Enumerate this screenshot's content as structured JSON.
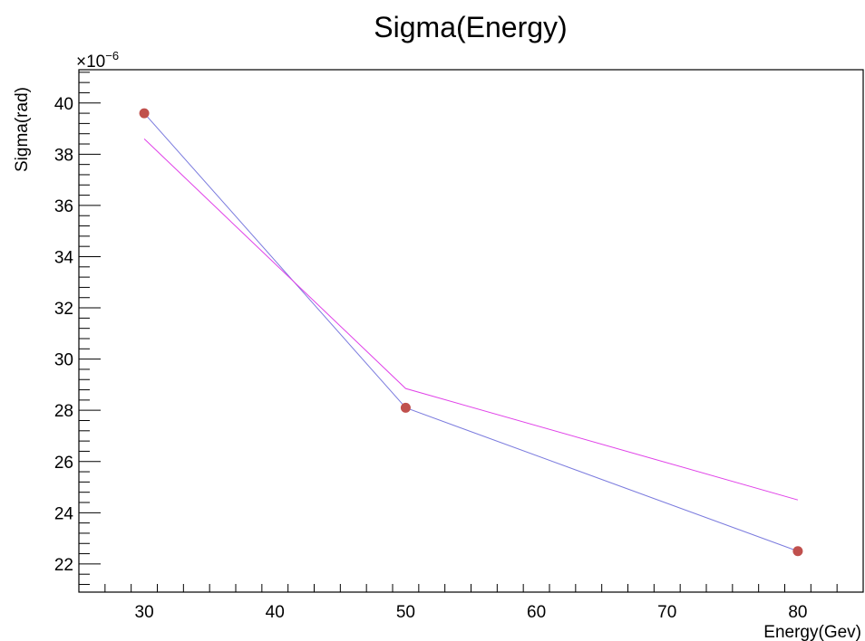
{
  "chart_data": {
    "type": "line",
    "title": "Sigma(Energy)",
    "xlabel": "Energy(Gev)",
    "ylabel": "Sigma(rad)",
    "y_multiplier": {
      "base": "×10",
      "exponent": "−6"
    },
    "xlim": [
      25,
      85
    ],
    "ylim": [
      20.9,
      41.3
    ],
    "x_ticks": [
      30,
      40,
      50,
      60,
      70,
      80
    ],
    "x_tick_labels": [
      "30",
      "40",
      "50",
      "60",
      "70",
      "80"
    ],
    "y_ticks": [
      22,
      24,
      26,
      28,
      30,
      32,
      34,
      36,
      38,
      40
    ],
    "y_tick_labels": [
      "22",
      "24",
      "26",
      "28",
      "30",
      "32",
      "34",
      "36",
      "38",
      "40"
    ],
    "grid": false,
    "series": [
      {
        "kind": "markers+line",
        "color": "#c0504d",
        "line_color": "#7b7bde",
        "x": [
          30,
          50,
          80
        ],
        "y": [
          39.6,
          28.1,
          22.5
        ]
      },
      {
        "kind": "line",
        "color": "#e040e8",
        "x": [
          30,
          50,
          80
        ],
        "y": [
          38.6,
          28.85,
          24.5
        ]
      }
    ]
  }
}
